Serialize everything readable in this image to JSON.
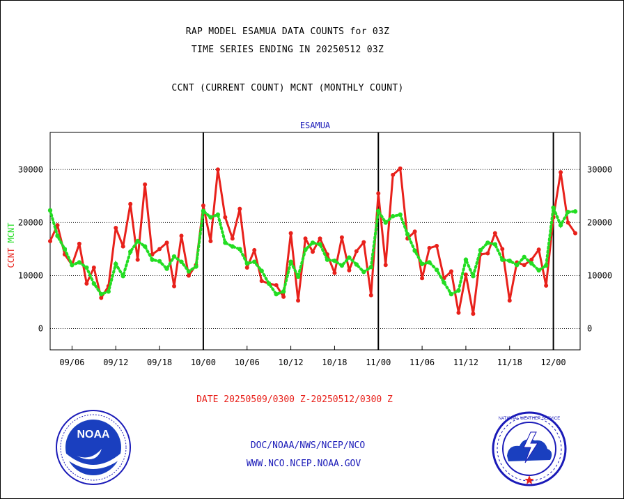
{
  "header": {
    "line1": "RAP MODEL ESAMUA DATA COUNTS for 03Z",
    "line2": "TIME SERIES ENDING IN 20250512 03Z",
    "line3": "CCNT (CURRENT COUNT) MCNT (MONTHLY COUNT)"
  },
  "footer": {
    "date_range": "DATE 20250509/0300 Z-20250512/0300 Z",
    "org_path": "DOC/NOAA/NWS/NCEP/NCO",
    "website": "WWW.NCO.NCEP.NOAA.GOV"
  },
  "logos": {
    "noaa_label": "NOAA",
    "nws_label": "NATIONAL WEATHER SERVICE"
  },
  "colors": {
    "ccnt": "#e8211b",
    "mcnt": "#22dd22",
    "axis_title": "#1a1ab8"
  },
  "chart_data": {
    "type": "line",
    "title": "ESAMUA",
    "ylabel_left": [
      "CCNT",
      "MCNT"
    ],
    "ylim": [
      -4000,
      37000
    ],
    "yticks": [
      0,
      10000,
      20000,
      30000
    ],
    "ytick_labels": [
      "0",
      "10000",
      "20000",
      "30000"
    ],
    "xlim": [
      0,
      109
    ],
    "xticks": [
      {
        "x": 4.5,
        "label": "09/06"
      },
      {
        "x": 13.5,
        "label": "09/12"
      },
      {
        "x": 22.5,
        "label": "09/18"
      },
      {
        "x": 31.5,
        "label": "10/00"
      },
      {
        "x": 40.5,
        "label": "10/06"
      },
      {
        "x": 49.5,
        "label": "10/12"
      },
      {
        "x": 58.5,
        "label": "10/18"
      },
      {
        "x": 67.5,
        "label": "11/00"
      },
      {
        "x": 76.5,
        "label": "11/06"
      },
      {
        "x": 85.5,
        "label": "11/12"
      },
      {
        "x": 94.5,
        "label": "11/18"
      },
      {
        "x": 103.5,
        "label": "12/00"
      }
    ],
    "day_boundaries": [
      31.5,
      67.5,
      103.5
    ],
    "grid": "horizontal dotted",
    "series": [
      {
        "name": "CCNT",
        "color": "#e8211b",
        "style": "solid",
        "points": [
          [
            0,
            16500
          ],
          [
            1.5,
            19500
          ],
          [
            3,
            14000
          ],
          [
            4.5,
            12000
          ],
          [
            6,
            16000
          ],
          [
            7.5,
            8500
          ],
          [
            9,
            11500
          ],
          [
            10.5,
            5800
          ],
          [
            12,
            8000
          ],
          [
            13.5,
            19000
          ],
          [
            15,
            15500
          ],
          [
            16.5,
            23500
          ],
          [
            18,
            13000
          ],
          [
            19.5,
            27200
          ],
          [
            21,
            14000
          ],
          [
            22.5,
            15000
          ],
          [
            24,
            16200
          ],
          [
            25.5,
            8000
          ],
          [
            27,
            17500
          ],
          [
            28.5,
            10000
          ],
          [
            30,
            12000
          ],
          [
            31.5,
            23200
          ],
          [
            33,
            16500
          ],
          [
            34.5,
            30000
          ],
          [
            36,
            21000
          ],
          [
            37.5,
            17000
          ],
          [
            39,
            22600
          ],
          [
            40.5,
            11500
          ],
          [
            42,
            14800
          ],
          [
            43.5,
            9000
          ],
          [
            45,
            8500
          ],
          [
            46.5,
            8200
          ],
          [
            48,
            6000
          ],
          [
            49.5,
            18000
          ],
          [
            51,
            5300
          ],
          [
            52.5,
            17000
          ],
          [
            54,
            14500
          ],
          [
            55.5,
            17000
          ],
          [
            57,
            14000
          ],
          [
            58.5,
            10500
          ],
          [
            60,
            17200
          ],
          [
            61.5,
            11000
          ],
          [
            63,
            14600
          ],
          [
            64.5,
            16300
          ],
          [
            66,
            6300
          ],
          [
            67.5,
            25500
          ],
          [
            69,
            12000
          ],
          [
            70.5,
            29000
          ],
          [
            72,
            30200
          ],
          [
            73.5,
            17000
          ],
          [
            75,
            18300
          ],
          [
            76.5,
            9500
          ],
          [
            78,
            15200
          ],
          [
            79.5,
            15600
          ],
          [
            81,
            9500
          ],
          [
            82.5,
            10800
          ],
          [
            84,
            3000
          ],
          [
            85.5,
            10200
          ],
          [
            87,
            2800
          ],
          [
            88.5,
            14000
          ],
          [
            90,
            14200
          ],
          [
            91.5,
            18000
          ],
          [
            93,
            15000
          ],
          [
            94.5,
            5300
          ],
          [
            96,
            12500
          ],
          [
            97.5,
            12000
          ],
          [
            99,
            13000
          ],
          [
            100.5,
            14900
          ],
          [
            102,
            8100
          ],
          [
            103.5,
            21000
          ],
          [
            105,
            29500
          ],
          [
            106.5,
            20000
          ],
          [
            108,
            18000
          ]
        ]
      },
      {
        "name": "MCNT",
        "color": "#22dd22",
        "style": "dotted",
        "points": [
          [
            0,
            22300
          ],
          [
            1.5,
            17500
          ],
          [
            3,
            15000
          ],
          [
            4.5,
            12000
          ],
          [
            6,
            12500
          ],
          [
            7.5,
            11500
          ],
          [
            9,
            8500
          ],
          [
            10.5,
            6500
          ],
          [
            12,
            7000
          ],
          [
            13.5,
            12200
          ],
          [
            15,
            9900
          ],
          [
            16.5,
            14500
          ],
          [
            18,
            16500
          ],
          [
            19.5,
            15500
          ],
          [
            21,
            13000
          ],
          [
            22.5,
            12700
          ],
          [
            24,
            11300
          ],
          [
            25.5,
            13600
          ],
          [
            27,
            12600
          ],
          [
            28.5,
            10800
          ],
          [
            30,
            11700
          ],
          [
            31.5,
            22200
          ],
          [
            33,
            21000
          ],
          [
            34.5,
            21500
          ],
          [
            36,
            16200
          ],
          [
            37.5,
            15500
          ],
          [
            39,
            15000
          ],
          [
            40.5,
            12300
          ],
          [
            42,
            12600
          ],
          [
            43.5,
            10900
          ],
          [
            45,
            8500
          ],
          [
            46.5,
            6500
          ],
          [
            48,
            7000
          ],
          [
            49.5,
            12600
          ],
          [
            51,
            9800
          ],
          [
            52.5,
            14900
          ],
          [
            54,
            16200
          ],
          [
            55.5,
            15900
          ],
          [
            57,
            13000
          ],
          [
            58.5,
            12800
          ],
          [
            60,
            11900
          ],
          [
            61.5,
            13400
          ],
          [
            63,
            12100
          ],
          [
            64.5,
            10700
          ],
          [
            66,
            11600
          ],
          [
            67.5,
            22200
          ],
          [
            69,
            20000
          ],
          [
            70.5,
            21200
          ],
          [
            72,
            21500
          ],
          [
            73.5,
            17800
          ],
          [
            75,
            14700
          ],
          [
            76.5,
            12200
          ],
          [
            78,
            12500
          ],
          [
            79.5,
            11100
          ],
          [
            81,
            8700
          ],
          [
            82.5,
            6500
          ],
          [
            84,
            7200
          ],
          [
            85.5,
            13000
          ],
          [
            87,
            9900
          ],
          [
            88.5,
            14800
          ],
          [
            90,
            16200
          ],
          [
            91.5,
            15900
          ],
          [
            93,
            13000
          ],
          [
            94.5,
            12800
          ],
          [
            96,
            12000
          ],
          [
            97.5,
            13500
          ],
          [
            99,
            12300
          ],
          [
            100.5,
            11000
          ],
          [
            102,
            11900
          ],
          [
            103.5,
            22800
          ],
          [
            105,
            19500
          ],
          [
            106.5,
            22000
          ],
          [
            108,
            22100
          ]
        ]
      }
    ]
  }
}
